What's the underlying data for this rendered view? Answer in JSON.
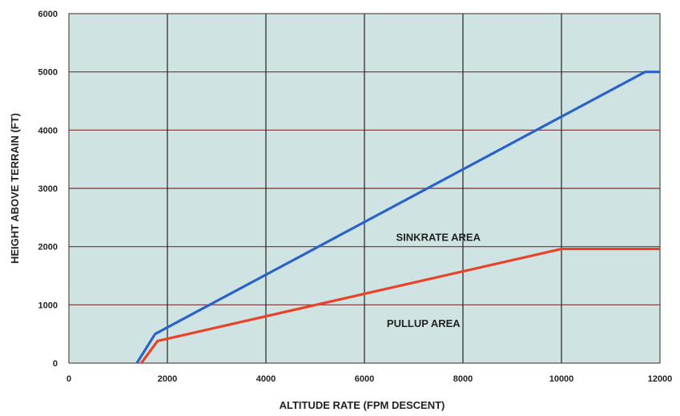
{
  "chart_data": {
    "type": "line",
    "xlabel": "ALTITUDE RATE (FPM DESCENT)",
    "ylabel": "HEIGHT ABOVE TERRAIN (FT)",
    "xlim": [
      0,
      12000
    ],
    "ylim": [
      0,
      6000
    ],
    "x_ticks": [
      "0",
      "2000",
      "4000",
      "6000",
      "8000",
      "10000",
      "12000"
    ],
    "y_ticks": [
      "0",
      "1000",
      "2000",
      "3000",
      "4000",
      "5000",
      "6000"
    ],
    "grid": true,
    "legend": "none",
    "series": [
      {
        "color": "#2a62c8",
        "x": [
          1380,
          1750,
          11700,
          12000
        ],
        "y": [
          0,
          500,
          5000,
          5000
        ]
      },
      {
        "color": "#e8432a",
        "x": [
          1470,
          1800,
          10000,
          12000
        ],
        "y": [
          0,
          380,
          1960,
          1960
        ]
      }
    ],
    "annotations": [
      {
        "text": "SINKRATE AREA",
        "x": 7500,
        "y": 2100
      },
      {
        "text": "PULLUP AREA",
        "x": 7200,
        "y": 620
      }
    ],
    "colors": {
      "plot_bg": "#cfe4e2",
      "grid_vertical": "#222222",
      "grid_horizontal": "#7a3030"
    }
  }
}
